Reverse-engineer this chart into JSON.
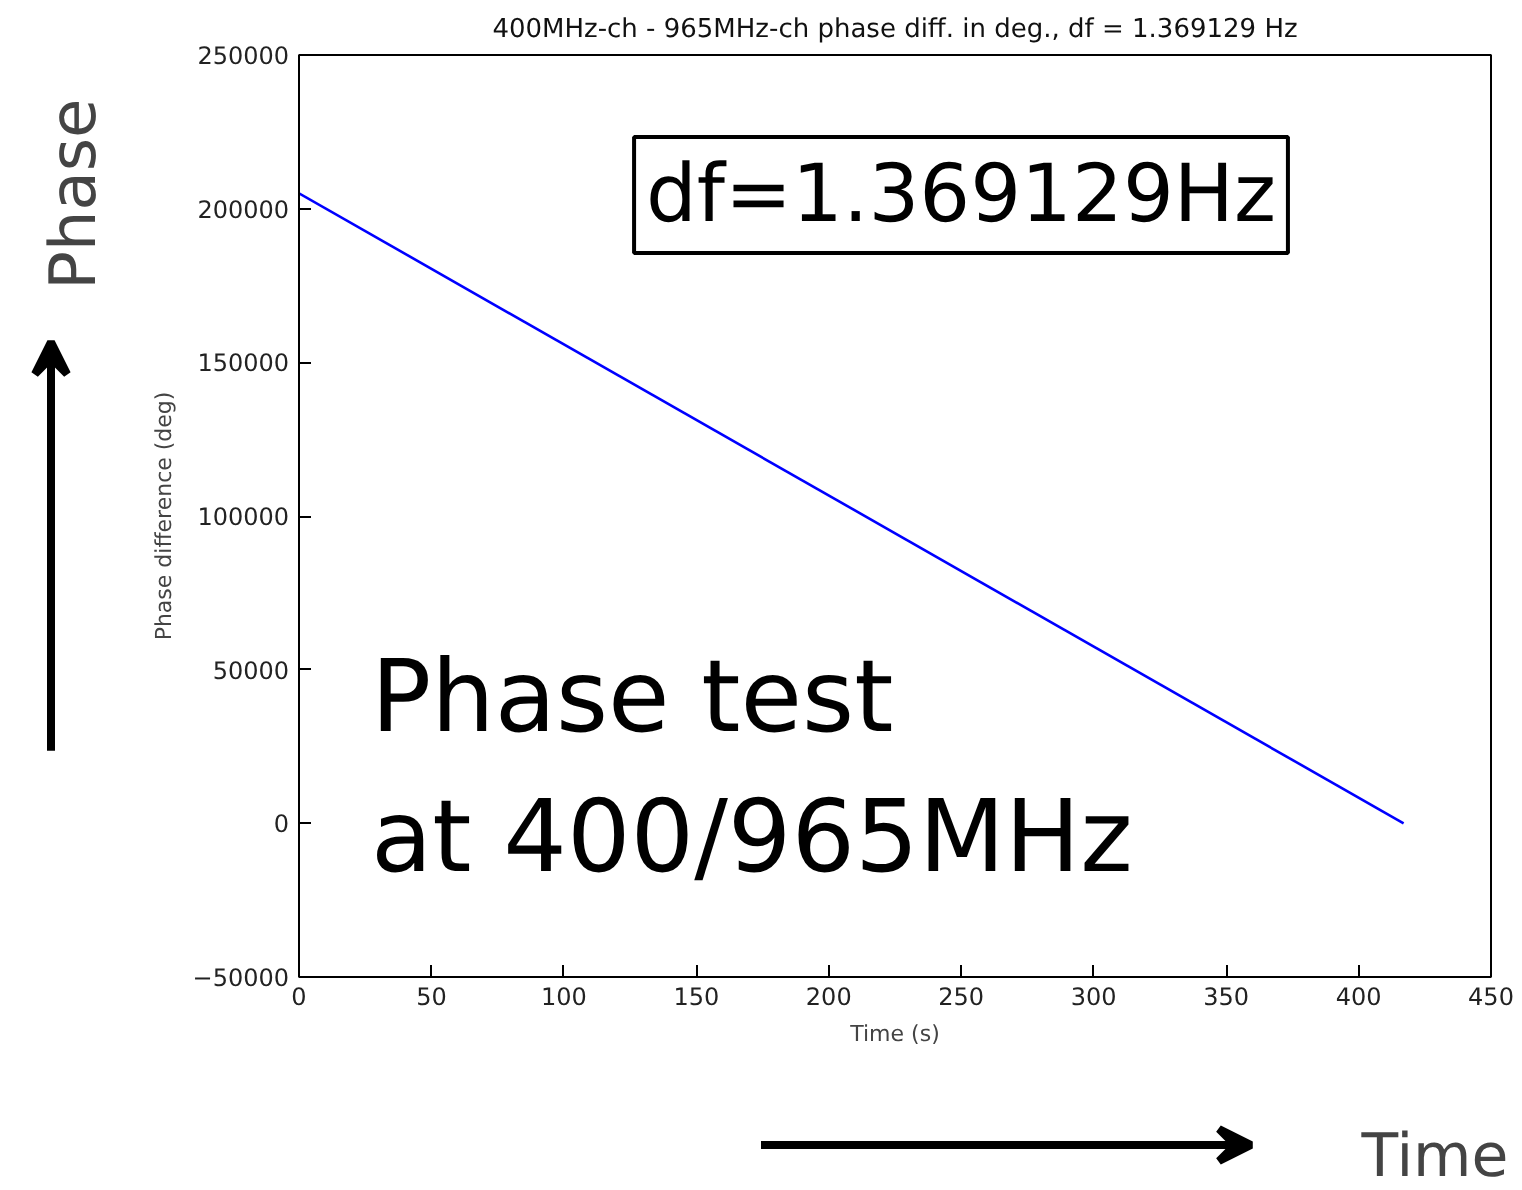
{
  "chart_data": {
    "type": "line",
    "title": "400MHz-ch - 965MHz-ch phase diff. in deg., df = 1.369129 Hz",
    "xlabel": "Time (s)",
    "ylabel": "Phase difference (deg)",
    "annotations": [
      "df=1.369129Hz",
      "Phase test\nat 400/965MHz",
      "Phase",
      "Time"
    ],
    "series": [
      {
        "color": "#0000ff",
        "x": [
          0,
          417
        ],
        "values": [
          205000,
          0
        ]
      }
    ],
    "xlim": [
      0,
      450
    ],
    "xticks": [
      0,
      50,
      100,
      150,
      200,
      250,
      300,
      350,
      400,
      450
    ],
    "ylim": [
      -50000,
      250000
    ],
    "yticks": [
      {
        "value": -50000,
        "label": "−50000"
      },
      0,
      50000,
      100000,
      150000,
      200000,
      250000
    ],
    "grid": false,
    "line_style": "solid"
  }
}
